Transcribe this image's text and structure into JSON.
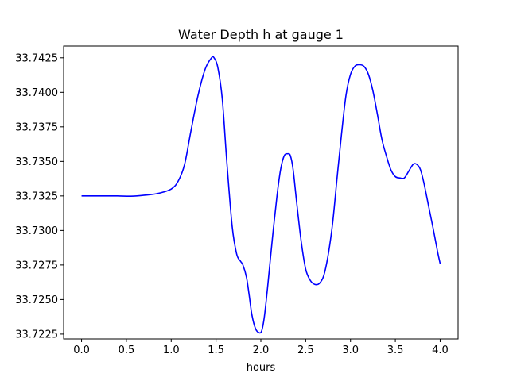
{
  "chart_data": {
    "type": "line",
    "title": "Water Depth h at gauge 1",
    "xlabel": "hours",
    "ylabel": "",
    "xlim": [
      -0.2,
      4.2
    ],
    "ylim": [
      33.72215,
      33.74335
    ],
    "xticks": [
      0.0,
      0.5,
      1.0,
      1.5,
      2.0,
      2.5,
      3.0,
      3.5,
      4.0
    ],
    "xtick_labels": [
      "0.0",
      "0.5",
      "1.0",
      "1.5",
      "2.0",
      "2.5",
      "3.0",
      "3.5",
      "4.0"
    ],
    "yticks": [
      33.7225,
      33.725,
      33.7275,
      33.73,
      33.7325,
      33.735,
      33.7375,
      33.74,
      33.7425
    ],
    "ytick_labels": [
      "33.7225",
      "33.7250",
      "33.7275",
      "33.7300",
      "33.7325",
      "33.7350",
      "33.7375",
      "33.7400",
      "33.7425"
    ],
    "grid": false,
    "series": [
      {
        "name": "h",
        "color": "#0000ff",
        "x": [
          0.0,
          0.2,
          0.4,
          0.55,
          0.7,
          0.85,
          1.0,
          1.08,
          1.15,
          1.22,
          1.3,
          1.38,
          1.45,
          1.48,
          1.52,
          1.57,
          1.62,
          1.68,
          1.73,
          1.77,
          1.8,
          1.84,
          1.87,
          1.9,
          1.94,
          1.98,
          2.01,
          2.04,
          2.08,
          2.13,
          2.18,
          2.22,
          2.26,
          2.3,
          2.33,
          2.36,
          2.4,
          2.45,
          2.5,
          2.55,
          2.6,
          2.65,
          2.7,
          2.75,
          2.8,
          2.85,
          2.9,
          2.95,
          3.0,
          3.05,
          3.1,
          3.15,
          3.2,
          3.25,
          3.3,
          3.35,
          3.4,
          3.45,
          3.5,
          3.55,
          3.6,
          3.65,
          3.7,
          3.74,
          3.78,
          3.82,
          3.87,
          3.92,
          3.97,
          4.0
        ],
        "y": [
          33.7325,
          33.7325,
          33.7325,
          33.73248,
          33.73255,
          33.73268,
          33.733,
          33.7336,
          33.7348,
          33.7372,
          33.7398,
          33.7417,
          33.7425,
          33.74248,
          33.7418,
          33.7395,
          33.735,
          33.7303,
          33.7283,
          33.7278,
          33.7275,
          33.7266,
          33.7253,
          33.7239,
          33.7229,
          33.7226,
          33.72275,
          33.7238,
          33.7262,
          33.7295,
          33.7325,
          33.7344,
          33.7354,
          33.73555,
          33.7354,
          33.7344,
          33.732,
          33.7292,
          33.7272,
          33.7264,
          33.7261,
          33.72615,
          33.7267,
          33.7282,
          33.7305,
          33.7338,
          33.737,
          33.7398,
          33.7413,
          33.7419,
          33.742,
          33.74188,
          33.7413,
          33.7401,
          33.7384,
          33.7366,
          33.7354,
          33.7344,
          33.7339,
          33.7338,
          33.7338,
          33.7343,
          33.7348,
          33.73478,
          33.7344,
          33.7334,
          33.7318,
          33.7302,
          33.7285,
          33.7276
        ]
      }
    ]
  }
}
